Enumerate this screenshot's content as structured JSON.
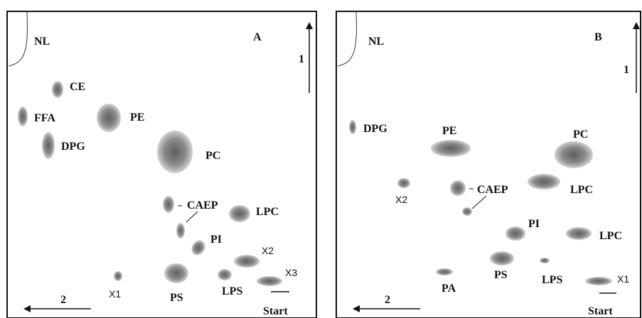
{
  "panels": [
    {
      "id": "A",
      "title": "A",
      "dir1": "1",
      "dir2": "2",
      "nl": "NL",
      "start": "Start",
      "labels": {
        "ce": "CE",
        "ffa": "FFA",
        "pe": "PE",
        "dpg": "DPG",
        "pc": "PC",
        "caep": "CAEP",
        "lpc": "LPC",
        "pi": "PI",
        "x2": "X2",
        "x3": "X3",
        "x1": "X1",
        "ps": "PS",
        "lps": "LPS"
      }
    },
    {
      "id": "B",
      "title": "B",
      "dir1": "1",
      "dir2": "2",
      "nl": "NL",
      "start": "Start",
      "labels": {
        "dpg": "DPG",
        "pe": "PE",
        "pc": "PC",
        "x2": "X2",
        "caep": "CAEP",
        "lpc_upper": "LPC",
        "pi": "PI",
        "lpc_lower": "LPC",
        "ps": "PS",
        "pa": "PA",
        "lps": "LPS",
        "x1": "X1"
      }
    }
  ],
  "colors": {
    "spot_center": "#6b6b6b",
    "spot_edge": "#cfcfcf",
    "frame": "#111111"
  }
}
